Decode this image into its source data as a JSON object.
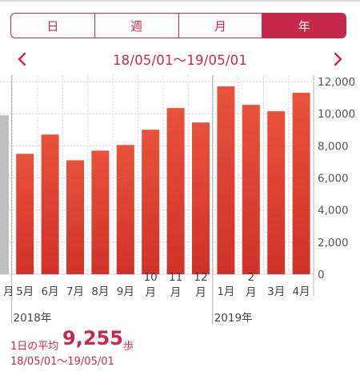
{
  "segments": {
    "items": [
      {
        "label": "日"
      },
      {
        "label": "週"
      },
      {
        "label": "月"
      },
      {
        "label": "年"
      }
    ],
    "selected": "年"
  },
  "header": {
    "range": "18/05/01〜19/05/01",
    "prev_icon": "chevron-left-icon",
    "next_icon": "chevron-right-icon"
  },
  "colors": {
    "accent": "#c8284a",
    "bar_top": "#e8523a",
    "bar_bottom": "#d1312a",
    "partial_bar": "#c0c0c0"
  },
  "chart_data": {
    "type": "bar",
    "unit": "歩",
    "ylim": [
      0,
      12000
    ],
    "yticks": [
      "0",
      "2,000",
      "4,000",
      "6,000",
      "8,000",
      "10,000",
      "12,000"
    ],
    "partial_left": {
      "label": "月",
      "value": 9900
    },
    "categories": [
      {
        "label": [
          "5月"
        ],
        "value": 7500
      },
      {
        "label": [
          "6月"
        ],
        "value": 8700
      },
      {
        "label": [
          "7月"
        ],
        "value": 7100
      },
      {
        "label": [
          "8月"
        ],
        "value": 7700
      },
      {
        "label": [
          "9月"
        ],
        "value": 8050
      },
      {
        "label": [
          "10",
          "月"
        ],
        "value": 9000
      },
      {
        "label": [
          "11",
          "月"
        ],
        "value": 10350
      },
      {
        "label": [
          "12",
          "月"
        ],
        "value": 9450
      },
      {
        "label": [
          "1月"
        ],
        "value": 11700
      },
      {
        "label": [
          "2",
          "月"
        ],
        "value": 10550
      },
      {
        "label": [
          "3月"
        ],
        "value": 10150
      },
      {
        "label": [
          "4月"
        ],
        "value": 11300
      }
    ],
    "year_labels": [
      {
        "text": "2018年",
        "at": 0
      },
      {
        "text": "2019年",
        "at": 8
      }
    ],
    "grid": true
  },
  "summary": {
    "label": "1日の平均",
    "value": "9,255",
    "unit": "歩",
    "range": "18/05/01〜19/05/01"
  }
}
